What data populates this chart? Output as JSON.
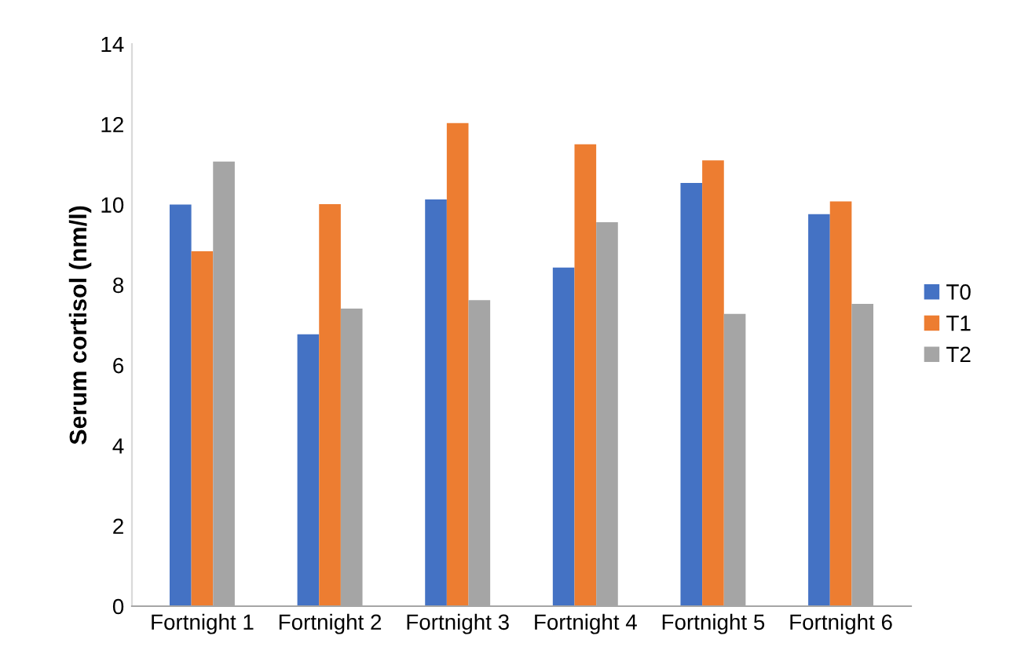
{
  "chart_data": {
    "type": "bar",
    "ylabel": "Serum cortisol (nm/l)",
    "categories": [
      "Fortnight 1",
      "Fortnight 2",
      "Fortnight 3",
      "Fortnight 4",
      "Fortnight 5",
      "Fortnight 6"
    ],
    "series": [
      {
        "name": "T0",
        "color": "#4472c4",
        "values": [
          10.0,
          6.77,
          10.13,
          8.43,
          10.54,
          9.76
        ]
      },
      {
        "name": "T1",
        "color": "#ed7d31",
        "values": [
          8.84,
          10.01,
          12.03,
          11.5,
          11.1,
          10.08
        ]
      },
      {
        "name": "T2",
        "color": "#a5a5a5",
        "values": [
          11.07,
          7.41,
          7.62,
          9.56,
          7.28,
          7.53
        ]
      }
    ],
    "ylim": [
      0,
      14
    ],
    "yticks": [
      0,
      2,
      4,
      6,
      8,
      10,
      12,
      14
    ],
    "grid": false,
    "legend": "right"
  }
}
